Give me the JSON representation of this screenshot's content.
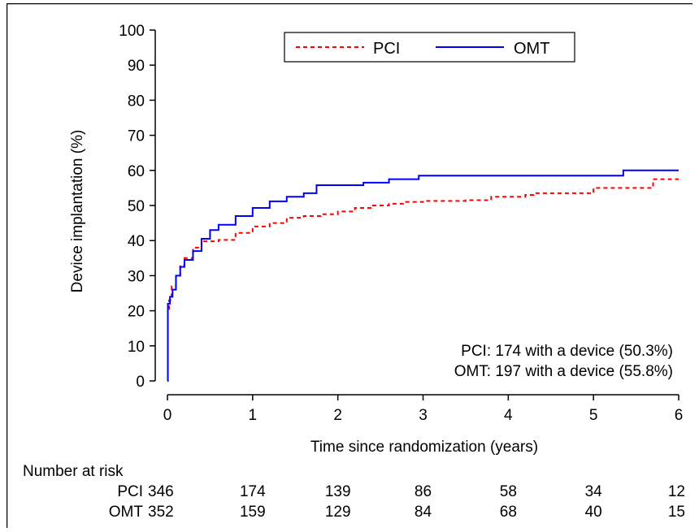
{
  "chart_data": {
    "type": "line",
    "title": "",
    "xlabel": "Time since randomization (years)",
    "ylabel": "Device implantation (%)",
    "xlim": [
      0,
      6
    ],
    "ylim": [
      0,
      100
    ],
    "x_ticks": [
      "0",
      "1",
      "2",
      "3",
      "4",
      "5",
      "6"
    ],
    "y_ticks": [
      "0",
      "10",
      "20",
      "30",
      "40",
      "50",
      "60",
      "70",
      "80",
      "90",
      "100"
    ],
    "grid": false,
    "legend_position": "top-center",
    "series": [
      {
        "name": "PCI",
        "color": "#ff0000",
        "style": "dashed",
        "points": [
          [
            0,
            0
          ],
          [
            0.005,
            20
          ],
          [
            0.02,
            23
          ],
          [
            0.05,
            27
          ],
          [
            0.1,
            30
          ],
          [
            0.15,
            33
          ],
          [
            0.2,
            35
          ],
          [
            0.3,
            38
          ],
          [
            0.4,
            39.8
          ],
          [
            0.6,
            40.2
          ],
          [
            0.8,
            42.2
          ],
          [
            1.0,
            44
          ],
          [
            1.2,
            45
          ],
          [
            1.4,
            46.5
          ],
          [
            1.6,
            47
          ],
          [
            1.8,
            47.5
          ],
          [
            2.0,
            48.3
          ],
          [
            2.2,
            49.3
          ],
          [
            2.4,
            50
          ],
          [
            2.6,
            50.5
          ],
          [
            2.8,
            51
          ],
          [
            3.0,
            51.3
          ],
          [
            3.5,
            51.5
          ],
          [
            3.8,
            52.5
          ],
          [
            4.2,
            53
          ],
          [
            4.3,
            53.5
          ],
          [
            5.0,
            55
          ],
          [
            5.4,
            55
          ],
          [
            5.7,
            57.5
          ],
          [
            6.0,
            57.5
          ]
        ]
      },
      {
        "name": "OMT",
        "color": "#0000ff",
        "style": "solid",
        "points": [
          [
            0,
            0
          ],
          [
            0.005,
            22
          ],
          [
            0.03,
            24
          ],
          [
            0.06,
            26
          ],
          [
            0.1,
            30
          ],
          [
            0.15,
            32.5
          ],
          [
            0.2,
            34.5
          ],
          [
            0.3,
            37
          ],
          [
            0.4,
            40.5
          ],
          [
            0.5,
            43
          ],
          [
            0.6,
            44.5
          ],
          [
            0.8,
            47
          ],
          [
            1.0,
            49.3
          ],
          [
            1.2,
            51.2
          ],
          [
            1.4,
            52.5
          ],
          [
            1.6,
            53.5
          ],
          [
            1.75,
            55.8
          ],
          [
            2.0,
            55.8
          ],
          [
            2.3,
            56.5
          ],
          [
            2.6,
            57.5
          ],
          [
            2.95,
            58.5
          ],
          [
            4.0,
            58.5
          ],
          [
            5.0,
            58.5
          ],
          [
            5.33,
            58.5
          ],
          [
            5.35,
            60
          ],
          [
            6.0,
            60
          ]
        ]
      }
    ],
    "annotations": [
      "PCI: 174 with a device (50.3%)",
      "OMT: 197 with a device (55.8%)"
    ],
    "risk_table": {
      "title": "Number at risk",
      "rows": [
        {
          "label": "PCI",
          "values": [
            "346",
            "174",
            "139",
            "86",
            "58",
            "34",
            "12"
          ]
        },
        {
          "label": "OMT",
          "values": [
            "352",
            "159",
            "129",
            "84",
            "68",
            "40",
            "15"
          ]
        }
      ]
    }
  }
}
